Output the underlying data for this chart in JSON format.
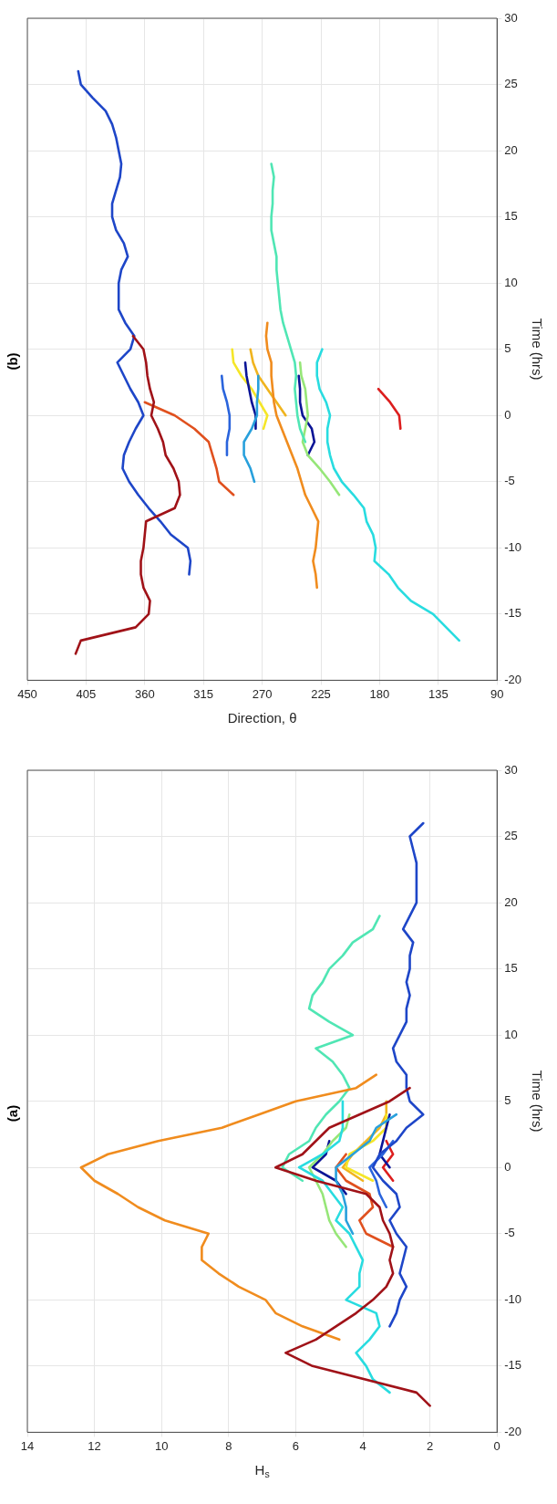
{
  "chart_data": [
    {
      "type": "line",
      "title": "(b)",
      "xlabel": "Direction, θ",
      "ylabel": "Time (hrs)",
      "ylim": [
        -20,
        30
      ],
      "yticks": [
        -20,
        -15,
        -10,
        -5,
        0,
        5,
        10,
        15,
        20,
        25,
        30
      ],
      "xlim": [
        450,
        90
      ],
      "xticks": [
        450,
        405,
        360,
        315,
        270,
        225,
        180,
        135,
        90
      ],
      "grid": true,
      "marker": "none",
      "line_style": "solid",
      "series": [
        {
          "color": "#a01218",
          "values": [
            -18,
            -17,
            -16,
            -15,
            -14,
            -13,
            -12,
            -11,
            -10,
            -9,
            -8,
            -7,
            -6,
            -5,
            -4,
            -3,
            -2,
            -1,
            0,
            1,
            2,
            3,
            4,
            5,
            6
          ],
          "x": [
            413,
            409,
            367,
            357,
            356,
            361,
            363,
            363,
            361,
            360,
            359,
            337,
            333,
            334,
            338,
            344,
            346,
            350,
            355,
            353,
            356,
            358,
            359,
            361,
            369
          ]
        },
        {
          "color": "#f08c1e",
          "values": [
            -13,
            -12,
            -11,
            -10,
            -9,
            -8,
            -7,
            -6,
            -5,
            -4,
            -3,
            -2,
            -1,
            0,
            1,
            2,
            3,
            4,
            5,
            6,
            7
          ],
          "x": [
            228,
            229,
            231,
            229,
            228,
            227,
            232,
            237,
            240,
            243,
            247,
            251,
            255,
            259,
            261,
            262,
            263,
            263,
            266,
            267,
            266
          ]
        },
        {
          "color": "#1e46c8",
          "values": [
            -12,
            -11,
            -10,
            -9,
            -8,
            -7,
            -6,
            -5,
            -4,
            -3,
            -2,
            -1,
            0,
            1,
            2,
            3,
            4,
            5,
            6,
            7,
            8,
            10,
            11,
            12,
            13,
            14,
            15,
            16,
            17,
            18,
            19,
            20,
            21,
            22,
            23,
            24,
            25,
            26
          ],
          "x": [
            326,
            325,
            327,
            340,
            348,
            357,
            365,
            372,
            377,
            376,
            372,
            367,
            361,
            365,
            371,
            376,
            381,
            371,
            368,
            375,
            380,
            380,
            378,
            373,
            376,
            382,
            385,
            385,
            382,
            379,
            378,
            380,
            382,
            385,
            390,
            400,
            409,
            411
          ]
        },
        {
          "color": "#28dce0",
          "values": [
            -17,
            -16,
            -15,
            -14,
            -13,
            -12,
            -11,
            -10,
            -9,
            -8,
            -7,
            -6,
            -5,
            -4,
            -3,
            -2,
            -1,
            0,
            1,
            2,
            3,
            4,
            5
          ],
          "x": [
            119,
            129,
            139,
            156,
            166,
            173,
            184,
            183,
            185,
            190,
            192,
            200,
            209,
            215,
            218,
            220,
            220,
            218,
            221,
            226,
            228,
            228,
            224
          ]
        },
        {
          "color": "#50e6b4",
          "values": [
            -2,
            -1,
            0,
            1,
            2,
            3,
            4,
            5,
            6,
            7,
            8,
            9,
            10,
            11,
            12,
            13,
            14,
            15,
            16,
            17,
            18,
            19
          ],
          "x": [
            237,
            241,
            243,
            244,
            245,
            244,
            245,
            248,
            251,
            254,
            256,
            257,
            258,
            259,
            259,
            261,
            263,
            263,
            262,
            262,
            261,
            263
          ]
        },
        {
          "color": "#96e678",
          "values": [
            -6,
            -5,
            -4,
            -3,
            -2,
            -1,
            0,
            1,
            2,
            3,
            4
          ],
          "x": [
            211,
            218,
            226,
            235,
            239,
            237,
            235,
            236,
            237,
            240,
            241
          ]
        },
        {
          "color": "#28a0dc",
          "values": [
            -5,
            -4,
            -3,
            -2,
            -1,
            0,
            1,
            2,
            3
          ],
          "x": [
            276,
            279,
            284,
            284,
            278,
            274,
            274,
            273,
            273
          ]
        },
        {
          "color": "#2a64dc",
          "values": [
            -3,
            -2,
            -1,
            0,
            1,
            2,
            3
          ],
          "x": [
            297,
            297,
            295,
            295,
            297,
            300,
            301
          ]
        },
        {
          "color": "#0a1496",
          "values": [
            -1,
            0,
            1,
            2,
            3,
            4
          ],
          "x": [
            275,
            275,
            278,
            280,
            282,
            283
          ]
        },
        {
          "color": "#0a1496",
          "values": [
            -3,
            -2,
            -1,
            0,
            1,
            2,
            3
          ],
          "x": [
            235,
            230,
            232,
            239,
            241,
            241,
            242
          ]
        },
        {
          "color": "#f5e628",
          "values": [
            -1,
            0,
            1,
            2,
            3,
            4,
            5
          ],
          "x": [
            269,
            266,
            272,
            278,
            286,
            292,
            293
          ]
        },
        {
          "color": "#f0b41e",
          "values": [
            0,
            1,
            2,
            3,
            4,
            5
          ],
          "x": [
            252,
            259,
            266,
            273,
            277,
            279
          ]
        },
        {
          "color": "#e0501e",
          "values": [
            -6,
            -5,
            -4,
            -3,
            -2,
            -1,
            0,
            1
          ],
          "x": [
            292,
            303,
            305,
            308,
            311,
            322,
            337,
            360
          ]
        },
        {
          "color": "#dc1e1e",
          "values": [
            -1,
            0,
            1,
            2
          ],
          "x": [
            164,
            165,
            172,
            181
          ]
        }
      ]
    },
    {
      "type": "line",
      "title": "(a)",
      "xlabel": "H$_{s}$",
      "ylabel": "Time (hrs)",
      "ylim": [
        -20,
        30
      ],
      "yticks": [
        -20,
        -15,
        -10,
        -5,
        0,
        5,
        10,
        15,
        20,
        25,
        30
      ],
      "xlim": [
        14,
        0
      ],
      "xticks": [
        14,
        12,
        10,
        8,
        6,
        4,
        2,
        0
      ],
      "grid": true,
      "marker": "none",
      "line_style": "solid",
      "series": [
        {
          "color": "#a01218",
          "values": [
            -18,
            -17,
            -15,
            -14,
            -13,
            -12,
            -11,
            -10,
            -9,
            -8,
            -7,
            -6,
            -5,
            -4,
            -3,
            -2,
            -1,
            0,
            1,
            2,
            3,
            4,
            5,
            6
          ],
          "x": [
            2.0,
            2.4,
            5.5,
            6.3,
            5.4,
            4.8,
            4.2,
            3.7,
            3.3,
            3.1,
            3.2,
            3.1,
            3.2,
            3.4,
            3.5,
            3.9,
            5.4,
            6.6,
            5.8,
            5.4,
            5.0,
            4.1,
            3.2,
            2.6
          ]
        },
        {
          "color": "#f08c1e",
          "values": [
            -13,
            -12,
            -11,
            -10,
            -9,
            -8,
            -7,
            -6,
            -5,
            -4,
            -3,
            -2,
            -1,
            0,
            1,
            2,
            3,
            4,
            5,
            6,
            7
          ],
          "x": [
            4.7,
            5.8,
            6.6,
            6.9,
            7.7,
            8.3,
            8.8,
            8.8,
            8.6,
            9.9,
            10.7,
            11.3,
            12.0,
            12.4,
            11.6,
            10.1,
            8.2,
            7.1,
            6.0,
            4.2,
            3.6
          ]
        },
        {
          "color": "#1e46c8",
          "values": [
            -12,
            -11,
            -10,
            -9,
            -8,
            -7,
            -6,
            -5,
            -4,
            -3,
            -2,
            -1,
            0,
            1,
            2,
            3,
            4,
            5,
            6,
            7,
            8,
            9,
            10,
            11,
            12,
            13,
            14,
            15,
            16,
            17,
            18,
            19,
            20,
            23,
            24,
            25,
            26
          ],
          "x": [
            3.2,
            3.0,
            2.9,
            2.7,
            2.9,
            2.8,
            2.7,
            3.0,
            3.2,
            2.9,
            3.0,
            3.4,
            3.7,
            3.5,
            3.0,
            2.7,
            2.2,
            2.6,
            2.7,
            2.7,
            3.0,
            3.1,
            2.9,
            2.7,
            2.7,
            2.6,
            2.7,
            2.6,
            2.6,
            2.5,
            2.8,
            2.6,
            2.4,
            2.4,
            2.5,
            2.6,
            2.2
          ]
        },
        {
          "color": "#28dce0",
          "values": [
            -17,
            -16,
            -15,
            -14,
            -13,
            -12,
            -11,
            -10,
            -9,
            -8,
            -7,
            -6,
            -5,
            -4,
            -3,
            -2,
            -1,
            0,
            1,
            2,
            3,
            5
          ],
          "x": [
            3.2,
            3.7,
            3.9,
            4.2,
            3.8,
            3.5,
            3.6,
            4.5,
            4.1,
            4.1,
            4.0,
            4.2,
            4.4,
            4.8,
            4.6,
            4.9,
            5.2,
            5.9,
            5.2,
            4.7,
            4.6,
            4.6
          ]
        },
        {
          "color": "#50e6b4",
          "values": [
            -1,
            0,
            1,
            2,
            3,
            4,
            5,
            6,
            7,
            8,
            9,
            10,
            11,
            12,
            13,
            14,
            15,
            16,
            17,
            18,
            19
          ],
          "x": [
            5.8,
            6.4,
            6.2,
            5.6,
            5.4,
            5.1,
            4.7,
            4.4,
            4.6,
            4.9,
            5.4,
            4.3,
            5.0,
            5.6,
            5.5,
            5.2,
            5.0,
            4.6,
            4.3,
            3.7,
            3.5
          ]
        },
        {
          "color": "#96e678",
          "values": [
            -6,
            -5,
            -4,
            -3,
            -2,
            -1,
            0,
            1,
            2,
            3,
            4
          ],
          "x": [
            4.5,
            4.8,
            5.0,
            5.1,
            5.2,
            5.4,
            5.6,
            5.2,
            4.9,
            4.5,
            4.4
          ]
        },
        {
          "color": "#28a0dc",
          "values": [
            -5,
            -4,
            -3,
            -2,
            -1,
            0,
            1,
            2,
            3,
            4
          ],
          "x": [
            4.3,
            4.5,
            4.5,
            4.6,
            4.8,
            4.8,
            4.3,
            3.8,
            3.6,
            3.0
          ]
        },
        {
          "color": "#2a64dc",
          "values": [
            -3,
            -2,
            -1,
            0,
            1,
            2
          ],
          "x": [
            3.3,
            3.5,
            3.6,
            3.8,
            3.4,
            3.1
          ]
        },
        {
          "color": "#0a1496",
          "values": [
            -2,
            -1,
            0,
            1,
            2
          ],
          "x": [
            4.5,
            4.8,
            5.5,
            5.1,
            5.0
          ]
        },
        {
          "color": "#0a1496",
          "values": [
            0,
            1,
            2,
            3,
            4
          ],
          "x": [
            3.2,
            3.5,
            3.4,
            3.3,
            3.2
          ]
        },
        {
          "color": "#f5e628",
          "values": [
            -1,
            0,
            1,
            2,
            3,
            4
          ],
          "x": [
            3.7,
            4.5,
            4.4,
            3.7,
            3.3,
            3.3
          ]
        },
        {
          "color": "#f0b41e",
          "values": [
            -1,
            0,
            1,
            2,
            3,
            4,
            5
          ],
          "x": [
            4.0,
            4.6,
            4.3,
            3.9,
            3.5,
            3.3,
            3.3
          ]
        },
        {
          "color": "#e0501e",
          "values": [
            -6,
            -5,
            -4,
            -3,
            -2,
            -1,
            0,
            1
          ],
          "x": [
            3.1,
            3.9,
            4.1,
            3.7,
            3.8,
            4.5,
            4.8,
            4.5
          ]
        },
        {
          "color": "#dc1e1e",
          "values": [
            -1,
            0,
            1,
            2
          ],
          "x": [
            3.1,
            3.4,
            3.1,
            3.3
          ]
        }
      ]
    }
  ]
}
